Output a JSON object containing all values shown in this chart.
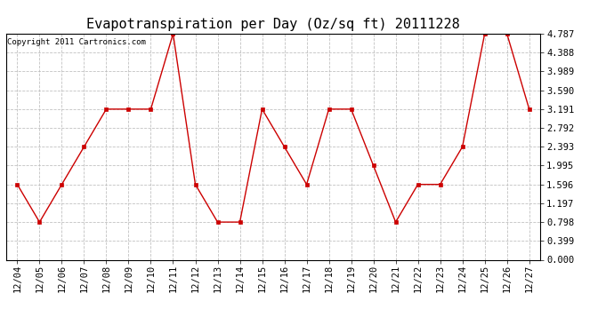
{
  "title": "Evapotranspiration per Day (Oz/sq ft) 20111228",
  "copyright": "Copyright 2011 Cartronics.com",
  "x_labels": [
    "12/04",
    "12/05",
    "12/06",
    "12/07",
    "12/08",
    "12/09",
    "12/10",
    "12/11",
    "12/12",
    "12/13",
    "12/14",
    "12/15",
    "12/16",
    "12/17",
    "12/18",
    "12/19",
    "12/20",
    "12/21",
    "12/22",
    "12/23",
    "12/24",
    "12/25",
    "12/26",
    "12/27"
  ],
  "y_values": [
    1.596,
    0.798,
    1.596,
    2.393,
    3.191,
    3.191,
    3.191,
    4.787,
    1.596,
    0.798,
    0.798,
    3.191,
    2.393,
    1.596,
    3.191,
    3.191,
    1.995,
    0.798,
    1.596,
    1.596,
    2.393,
    4.787,
    4.787,
    3.191
  ],
  "y_ticks": [
    0.0,
    0.399,
    0.798,
    1.197,
    1.596,
    1.995,
    2.393,
    2.792,
    3.191,
    3.59,
    3.989,
    4.388,
    4.787
  ],
  "line_color": "#cc0000",
  "marker_color": "#cc0000",
  "bg_color": "#ffffff",
  "grid_color": "#bbbbbb",
  "title_fontsize": 11,
  "copyright_fontsize": 6.5,
  "tick_fontsize": 7.5,
  "ylim_min": 0.0,
  "ylim_max": 4.787
}
